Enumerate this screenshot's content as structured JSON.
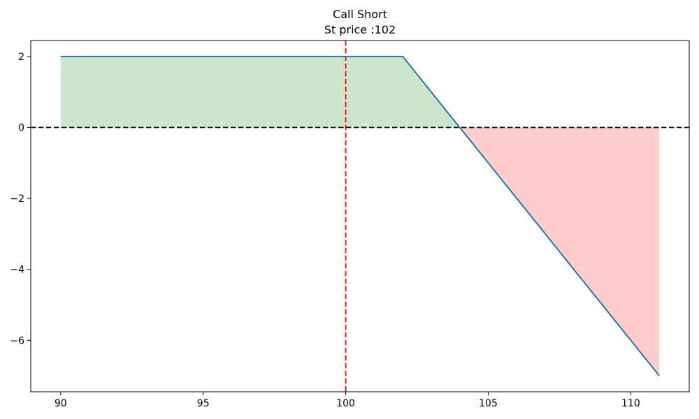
{
  "figure": {
    "background": "#ffffff"
  },
  "chart_data": {
    "type": "line",
    "title": "Call Short",
    "subtitle": "St price :102",
    "xlabel": "",
    "ylabel": "",
    "grid": false,
    "legend": null,
    "xlim": [
      88.95,
      112.05
    ],
    "ylim": [
      -7.45,
      2.45
    ],
    "xticks": [
      90,
      95,
      100,
      105,
      110
    ],
    "yticks": [
      2,
      0,
      -2,
      -4,
      -6
    ],
    "x": [
      90,
      91,
      92,
      93,
      94,
      95,
      96,
      97,
      98,
      99,
      100,
      101,
      102,
      103,
      104,
      105,
      106,
      107,
      108,
      109,
      110,
      111
    ],
    "series": [
      {
        "name": "short-call-payoff",
        "color": "#1f77b4",
        "line_width": 2,
        "values": [
          2,
          2,
          2,
          2,
          2,
          2,
          2,
          2,
          2,
          2,
          2,
          2,
          2,
          1,
          0,
          -1,
          -2,
          -3,
          -4,
          -5,
          -6,
          -7
        ]
      }
    ],
    "reference_lines": [
      {
        "name": "zero-payoff-line",
        "orientation": "horizontal",
        "value": 0,
        "color": "#000000",
        "dash": "dashed",
        "line_width": 1.8
      },
      {
        "name": "current-price-line",
        "orientation": "vertical",
        "value": 100,
        "color": "#ff0000",
        "dash": "dashed",
        "line_width": 1.8
      }
    ],
    "fill_regions": [
      {
        "name": "profit-region",
        "color": "#cce6cc",
        "between": "payoff-and-zero",
        "x_range": [
          90,
          104
        ]
      },
      {
        "name": "loss-region",
        "color": "#ffcccc",
        "between": "payoff-and-zero",
        "x_range": [
          104,
          111
        ]
      }
    ],
    "annotations": {
      "strike_price": 102,
      "premium": 2,
      "breakeven": 104,
      "max_profit": 2,
      "min_payoff_shown": -7
    }
  }
}
